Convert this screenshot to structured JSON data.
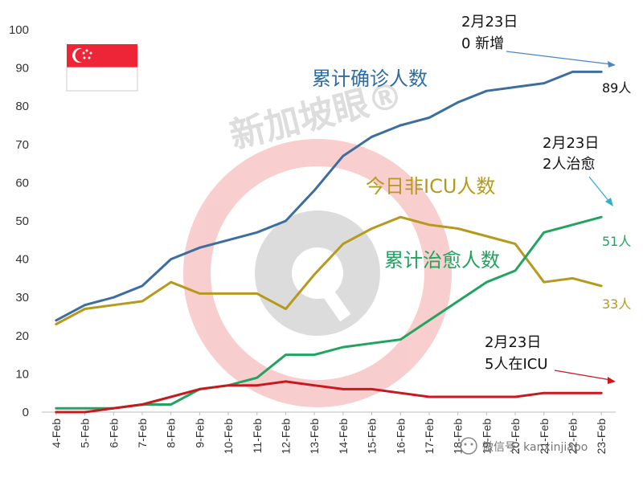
{
  "chart_data": {
    "type": "line",
    "categories": [
      "4-Feb",
      "5-Feb",
      "6-Feb",
      "7-Feb",
      "8-Feb",
      "9-Feb",
      "10-Feb",
      "11-Feb",
      "12-Feb",
      "13-Feb",
      "14-Feb",
      "15-Feb",
      "16-Feb",
      "17-Feb",
      "18-Feb",
      "19-Feb",
      "20-Feb",
      "21-Feb",
      "22-Feb",
      "23-Feb"
    ],
    "ylim": [
      0,
      100
    ],
    "yticks": [
      0,
      10,
      20,
      30,
      40,
      50,
      60,
      70,
      80,
      90,
      100
    ],
    "series": [
      {
        "name": "累计确诊人数",
        "color": "#3d6e9e",
        "values": [
          24,
          28,
          30,
          33,
          40,
          43,
          45,
          47,
          50,
          58,
          67,
          72,
          75,
          77,
          81,
          84,
          85,
          86,
          89,
          89
        ],
        "end_label": "89人"
      },
      {
        "name": "今日非ICU人数",
        "color": "#b59a1d",
        "values": [
          23,
          27,
          28,
          29,
          34,
          31,
          31,
          31,
          27,
          36,
          44,
          48,
          51,
          49,
          48,
          46,
          44,
          34,
          35,
          33
        ],
        "end_label": "33人"
      },
      {
        "name": "累计治愈人数",
        "color": "#22a35f",
        "values": [
          1,
          1,
          1,
          2,
          2,
          6,
          7,
          9,
          15,
          15,
          17,
          18,
          19,
          24,
          29,
          34,
          37,
          47,
          49,
          51
        ],
        "end_label": "51人"
      },
      {
        "name": "",
        "color": "#c8191e",
        "values": [
          0,
          0,
          1,
          2,
          4,
          6,
          7,
          7,
          8,
          7,
          6,
          6,
          5,
          4,
          4,
          4,
          4,
          5,
          5,
          5
        ]
      }
    ],
    "annotations": [
      {
        "id": "confirmed",
        "lines": [
          "2月23日",
          "0 新增"
        ]
      },
      {
        "id": "recovered",
        "lines": [
          "2月23日",
          "2人治愈"
        ]
      },
      {
        "id": "icu",
        "lines": [
          "2月23日",
          "5人在ICU"
        ]
      }
    ]
  },
  "watermark": {
    "text": "新加坡眼®",
    "footer": "微信号: kanxinjiapo"
  },
  "flag": {
    "top_color": "#ee2536",
    "bottom_color": "#ffffff"
  }
}
